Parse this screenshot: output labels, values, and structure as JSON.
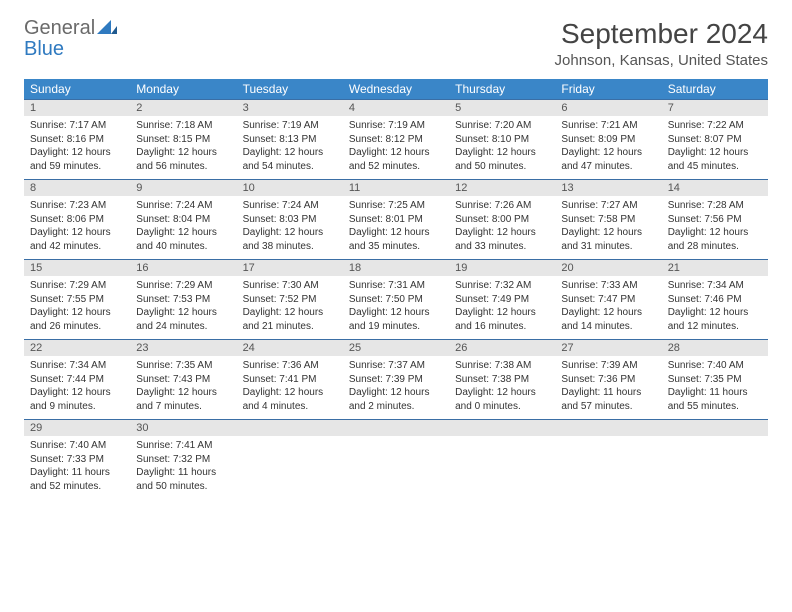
{
  "brand": {
    "word1": "General",
    "word2": "Blue",
    "word1_color": "#6a6a6a",
    "word2_color": "#2f7ac0",
    "mark_color": "#2f7ac0"
  },
  "title": "September 2024",
  "location": "Johnson, Kansas, United States",
  "colors": {
    "header_row_bg": "#3a86c8",
    "header_row_fg": "#ffffff",
    "daynum_bg": "#e6e6e6",
    "daynum_border": "#3a6ea5",
    "text": "#333333",
    "page_bg": "#ffffff"
  },
  "typography": {
    "title_fontsize": 28,
    "location_fontsize": 15,
    "dow_fontsize": 12,
    "daynum_fontsize": 11,
    "body_fontsize": 10
  },
  "days_of_week": [
    "Sunday",
    "Monday",
    "Tuesday",
    "Wednesday",
    "Thursday",
    "Friday",
    "Saturday"
  ],
  "weeks": [
    [
      {
        "num": "1",
        "sunrise": "Sunrise: 7:17 AM",
        "sunset": "Sunset: 8:16 PM",
        "daylight": "Daylight: 12 hours and 59 minutes."
      },
      {
        "num": "2",
        "sunrise": "Sunrise: 7:18 AM",
        "sunset": "Sunset: 8:15 PM",
        "daylight": "Daylight: 12 hours and 56 minutes."
      },
      {
        "num": "3",
        "sunrise": "Sunrise: 7:19 AM",
        "sunset": "Sunset: 8:13 PM",
        "daylight": "Daylight: 12 hours and 54 minutes."
      },
      {
        "num": "4",
        "sunrise": "Sunrise: 7:19 AM",
        "sunset": "Sunset: 8:12 PM",
        "daylight": "Daylight: 12 hours and 52 minutes."
      },
      {
        "num": "5",
        "sunrise": "Sunrise: 7:20 AM",
        "sunset": "Sunset: 8:10 PM",
        "daylight": "Daylight: 12 hours and 50 minutes."
      },
      {
        "num": "6",
        "sunrise": "Sunrise: 7:21 AM",
        "sunset": "Sunset: 8:09 PM",
        "daylight": "Daylight: 12 hours and 47 minutes."
      },
      {
        "num": "7",
        "sunrise": "Sunrise: 7:22 AM",
        "sunset": "Sunset: 8:07 PM",
        "daylight": "Daylight: 12 hours and 45 minutes."
      }
    ],
    [
      {
        "num": "8",
        "sunrise": "Sunrise: 7:23 AM",
        "sunset": "Sunset: 8:06 PM",
        "daylight": "Daylight: 12 hours and 42 minutes."
      },
      {
        "num": "9",
        "sunrise": "Sunrise: 7:24 AM",
        "sunset": "Sunset: 8:04 PM",
        "daylight": "Daylight: 12 hours and 40 minutes."
      },
      {
        "num": "10",
        "sunrise": "Sunrise: 7:24 AM",
        "sunset": "Sunset: 8:03 PM",
        "daylight": "Daylight: 12 hours and 38 minutes."
      },
      {
        "num": "11",
        "sunrise": "Sunrise: 7:25 AM",
        "sunset": "Sunset: 8:01 PM",
        "daylight": "Daylight: 12 hours and 35 minutes."
      },
      {
        "num": "12",
        "sunrise": "Sunrise: 7:26 AM",
        "sunset": "Sunset: 8:00 PM",
        "daylight": "Daylight: 12 hours and 33 minutes."
      },
      {
        "num": "13",
        "sunrise": "Sunrise: 7:27 AM",
        "sunset": "Sunset: 7:58 PM",
        "daylight": "Daylight: 12 hours and 31 minutes."
      },
      {
        "num": "14",
        "sunrise": "Sunrise: 7:28 AM",
        "sunset": "Sunset: 7:56 PM",
        "daylight": "Daylight: 12 hours and 28 minutes."
      }
    ],
    [
      {
        "num": "15",
        "sunrise": "Sunrise: 7:29 AM",
        "sunset": "Sunset: 7:55 PM",
        "daylight": "Daylight: 12 hours and 26 minutes."
      },
      {
        "num": "16",
        "sunrise": "Sunrise: 7:29 AM",
        "sunset": "Sunset: 7:53 PM",
        "daylight": "Daylight: 12 hours and 24 minutes."
      },
      {
        "num": "17",
        "sunrise": "Sunrise: 7:30 AM",
        "sunset": "Sunset: 7:52 PM",
        "daylight": "Daylight: 12 hours and 21 minutes."
      },
      {
        "num": "18",
        "sunrise": "Sunrise: 7:31 AM",
        "sunset": "Sunset: 7:50 PM",
        "daylight": "Daylight: 12 hours and 19 minutes."
      },
      {
        "num": "19",
        "sunrise": "Sunrise: 7:32 AM",
        "sunset": "Sunset: 7:49 PM",
        "daylight": "Daylight: 12 hours and 16 minutes."
      },
      {
        "num": "20",
        "sunrise": "Sunrise: 7:33 AM",
        "sunset": "Sunset: 7:47 PM",
        "daylight": "Daylight: 12 hours and 14 minutes."
      },
      {
        "num": "21",
        "sunrise": "Sunrise: 7:34 AM",
        "sunset": "Sunset: 7:46 PM",
        "daylight": "Daylight: 12 hours and 12 minutes."
      }
    ],
    [
      {
        "num": "22",
        "sunrise": "Sunrise: 7:34 AM",
        "sunset": "Sunset: 7:44 PM",
        "daylight": "Daylight: 12 hours and 9 minutes."
      },
      {
        "num": "23",
        "sunrise": "Sunrise: 7:35 AM",
        "sunset": "Sunset: 7:43 PM",
        "daylight": "Daylight: 12 hours and 7 minutes."
      },
      {
        "num": "24",
        "sunrise": "Sunrise: 7:36 AM",
        "sunset": "Sunset: 7:41 PM",
        "daylight": "Daylight: 12 hours and 4 minutes."
      },
      {
        "num": "25",
        "sunrise": "Sunrise: 7:37 AM",
        "sunset": "Sunset: 7:39 PM",
        "daylight": "Daylight: 12 hours and 2 minutes."
      },
      {
        "num": "26",
        "sunrise": "Sunrise: 7:38 AM",
        "sunset": "Sunset: 7:38 PM",
        "daylight": "Daylight: 12 hours and 0 minutes."
      },
      {
        "num": "27",
        "sunrise": "Sunrise: 7:39 AM",
        "sunset": "Sunset: 7:36 PM",
        "daylight": "Daylight: 11 hours and 57 minutes."
      },
      {
        "num": "28",
        "sunrise": "Sunrise: 7:40 AM",
        "sunset": "Sunset: 7:35 PM",
        "daylight": "Daylight: 11 hours and 55 minutes."
      }
    ],
    [
      {
        "num": "29",
        "sunrise": "Sunrise: 7:40 AM",
        "sunset": "Sunset: 7:33 PM",
        "daylight": "Daylight: 11 hours and 52 minutes."
      },
      {
        "num": "30",
        "sunrise": "Sunrise: 7:41 AM",
        "sunset": "Sunset: 7:32 PM",
        "daylight": "Daylight: 11 hours and 50 minutes."
      },
      null,
      null,
      null,
      null,
      null
    ]
  ]
}
